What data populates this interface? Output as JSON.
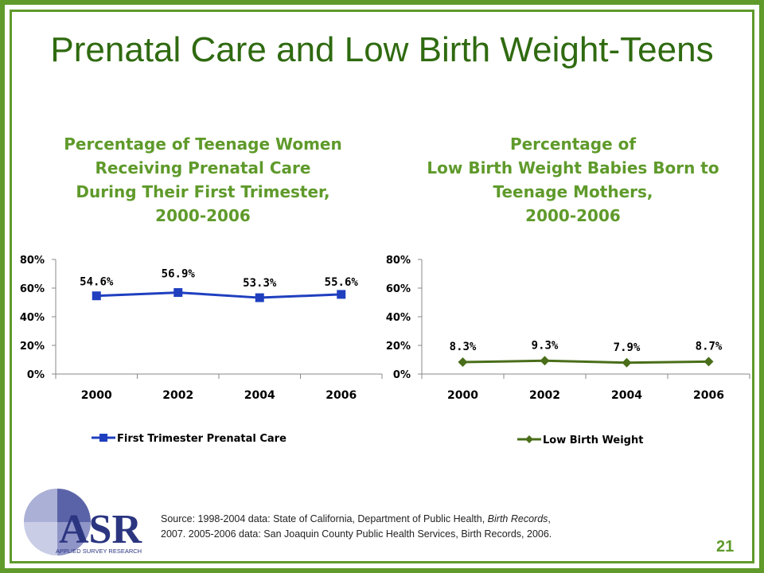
{
  "slide": {
    "title": "Prenatal Care and Low Birth Weight-Teens",
    "page_number": "21",
    "source_line1_a": "Source: 1998-2004 data: State of California, Department of Public Health, ",
    "source_line1_italic": "Birth Records",
    "source_line1_b": ",",
    "source_line2": "2007. 2005-2006 data: San Joaquin County Public Health Services, Birth Records, 2006.",
    "logo": {
      "text": "ASR",
      "subtitle": "APPLIED SURVEY RESEARCH"
    },
    "colors": {
      "frame": "#5f9a2b",
      "title": "#2f6a10",
      "subtitle": "#5f9a2b"
    }
  },
  "chart_data": [
    {
      "type": "line",
      "title_lines": [
        "Percentage of Teenage Women",
        "Receiving Prenatal Care",
        "During Their First Trimester,",
        "2000-2006"
      ],
      "categories": [
        "2000",
        "2002",
        "2004",
        "2006"
      ],
      "series": [
        {
          "name": "First Trimester Prenatal Care",
          "values": [
            54.6,
            56.9,
            53.3,
            55.6
          ],
          "labels": [
            "54.6%",
            "56.9%",
            "53.3%",
            "55.6%"
          ],
          "color": "#1f3fbf",
          "marker": "square"
        }
      ],
      "yticks": [
        "0%",
        "20%",
        "40%",
        "60%",
        "80%"
      ],
      "ylim": [
        0,
        80
      ],
      "legend": "bottom"
    },
    {
      "type": "line",
      "title_lines": [
        "Percentage of",
        "Low Birth Weight Babies Born to",
        "Teenage Mothers,",
        "2000-2006"
      ],
      "categories": [
        "2000",
        "2002",
        "2004",
        "2006"
      ],
      "series": [
        {
          "name": "Low Birth Weight",
          "values": [
            8.3,
            9.3,
            7.9,
            8.7
          ],
          "labels": [
            "8.3%",
            "9.3%",
            "7.9%",
            "8.7%"
          ],
          "color": "#4a6e1a",
          "marker": "diamond"
        }
      ],
      "yticks": [
        "0%",
        "20%",
        "40%",
        "60%",
        "80%"
      ],
      "ylim": [
        0,
        80
      ],
      "legend": "bottom"
    }
  ]
}
